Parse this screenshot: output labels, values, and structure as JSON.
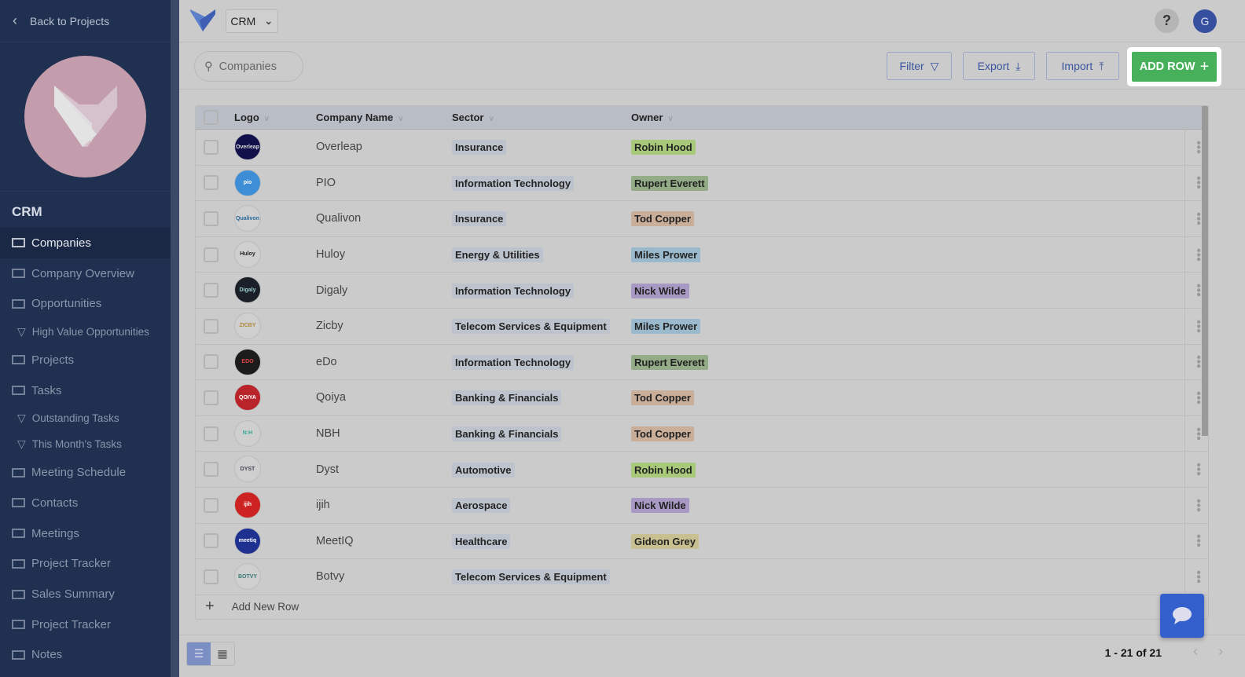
{
  "sidebar": {
    "back_label": "Back to Projects",
    "project_title": "CRM",
    "items": [
      {
        "label": "Companies",
        "icon": "table-icon",
        "active": true,
        "sub": false
      },
      {
        "label": "Company Overview",
        "icon": "overview-icon",
        "sub": false
      },
      {
        "label": "Opportunities",
        "icon": "kanban-icon",
        "sub": false
      },
      {
        "label": "High Value Opportunities",
        "icon": "filter-icon",
        "sub": true
      },
      {
        "label": "Projects",
        "icon": "table-icon",
        "sub": false
      },
      {
        "label": "Tasks",
        "icon": "table-icon",
        "sub": false
      },
      {
        "label": "Outstanding Tasks",
        "icon": "filter-icon",
        "sub": true
      },
      {
        "label": "This Month's Tasks",
        "icon": "filter-icon",
        "sub": true
      },
      {
        "label": "Meeting Schedule",
        "icon": "calendar-icon",
        "sub": false
      },
      {
        "label": "Contacts",
        "icon": "table-icon",
        "sub": false
      },
      {
        "label": "Meetings",
        "icon": "table-icon",
        "sub": false
      },
      {
        "label": "Project Tracker",
        "icon": "overview-icon",
        "sub": false
      },
      {
        "label": "Sales Summary",
        "icon": "overview-icon",
        "sub": false
      },
      {
        "label": "Project Tracker",
        "icon": "chart-icon",
        "sub": false
      },
      {
        "label": "Notes",
        "icon": "table-icon",
        "sub": false
      }
    ]
  },
  "topbar": {
    "app_select": "CRM",
    "help": "?",
    "avatar": "G"
  },
  "toolbar": {
    "search_placeholder": "Companies",
    "filter": "Filter",
    "export": "Export",
    "import": "Import",
    "add_row": "ADD ROW"
  },
  "table": {
    "columns": [
      "Logo",
      "Company Name",
      "Sector",
      "Owner"
    ],
    "rows": [
      {
        "logo": "Overleap",
        "logo_bg": "#12104a",
        "logo_fg": "#ddd",
        "name": "Overleap",
        "sector": "Insurance",
        "owner": "Robin Hood",
        "owner_color": "#a8c97a"
      },
      {
        "logo": "pio",
        "logo_bg": "#3d8ed6",
        "logo_fg": "#fff",
        "name": "PIO",
        "sector": "Information Technology",
        "owner": "Rupert Everett",
        "owner_color": "#93ab86"
      },
      {
        "logo": "Qualivon",
        "logo_bg": "#cfcfcf",
        "logo_fg": "#2a6a9a",
        "name": "Qualivon",
        "sector": "Insurance",
        "owner": "Tod Copper",
        "owner_color": "#c9ae9a"
      },
      {
        "logo": "Huloy",
        "logo_bg": "#cfcfcf",
        "logo_fg": "#222",
        "name": "Huloy",
        "sector": "Energy & Utilities",
        "owner": "Miles Prower",
        "owner_color": "#9ab9cc"
      },
      {
        "logo": "Digaly",
        "logo_bg": "#1a1f28",
        "logo_fg": "#9cc",
        "name": "Digaly",
        "sector": "Information Technology",
        "owner": "Nick Wilde",
        "owner_color": "#a898c4"
      },
      {
        "logo": "ZICBY",
        "logo_bg": "#cfcfcf",
        "logo_fg": "#b08a3a",
        "name": "Zicby",
        "sector": "Telecom Services & Equipment",
        "owner": "Miles Prower",
        "owner_color": "#9ab9cc"
      },
      {
        "logo": "EDO",
        "logo_bg": "#1c1c1c",
        "logo_fg": "#d44",
        "name": "eDo",
        "sector": "Information Technology",
        "owner": "Rupert Everett",
        "owner_color": "#93ab86"
      },
      {
        "logo": "QOIYA",
        "logo_bg": "#b8242a",
        "logo_fg": "#fff",
        "name": "Qoiya",
        "sector": "Banking & Financials",
        "owner": "Tod Copper",
        "owner_color": "#c9ae9a"
      },
      {
        "logo": "N:H",
        "logo_bg": "#cfcfcf",
        "logo_fg": "#3aa79a",
        "name": "NBH",
        "sector": "Banking & Financials",
        "owner": "Tod Copper",
        "owner_color": "#c9ae9a"
      },
      {
        "logo": "DYST",
        "logo_bg": "#cfcfcf",
        "logo_fg": "#445",
        "name": "Dyst",
        "sector": "Automotive",
        "owner": "Robin Hood",
        "owner_color": "#a8c97a"
      },
      {
        "logo": "ijih",
        "logo_bg": "#cc2222",
        "logo_fg": "#fff",
        "name": "ijih",
        "sector": "Aerospace",
        "owner": "Nick Wilde",
        "owner_color": "#a898c4"
      },
      {
        "logo": "meetiq",
        "logo_bg": "#1e3190",
        "logo_fg": "#fff",
        "name": "MeetIQ",
        "sector": "Healthcare",
        "owner": "Gideon Grey",
        "owner_color": "#c8c090"
      },
      {
        "logo": "BOTVY",
        "logo_bg": "#cfcfcf",
        "logo_fg": "#3a7a7a",
        "name": "Botvy",
        "sector": "Telecom Services & Equipment",
        "owner": "",
        "owner_color": ""
      }
    ],
    "add_new_row": "Add New Row"
  },
  "footer": {
    "pagination": "1 - 21 of 21"
  }
}
